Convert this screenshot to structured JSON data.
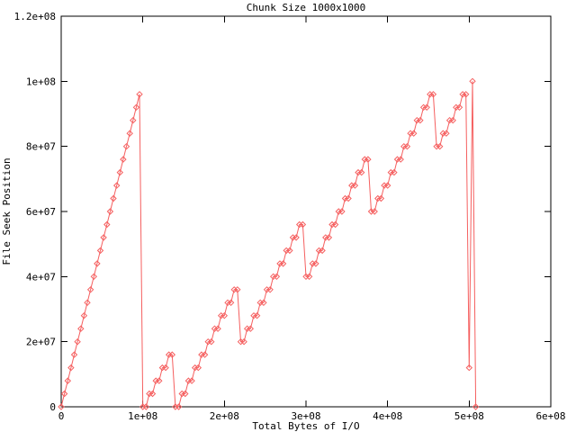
{
  "chart_data": {
    "type": "line",
    "title": "Chunk Size 1000x1000",
    "xlabel": "Total Bytes of I/O",
    "ylabel": "File Seek Position",
    "xlim": [
      0,
      600000000.0
    ],
    "ylim": [
      0,
      120000000.0
    ],
    "grid": false,
    "legend": "none",
    "axis_color": "#000000",
    "background_color": "#ffffff",
    "x_ticks": [
      {
        "value": 0,
        "label": "0"
      },
      {
        "value": 100000000.0,
        "label": "1e+08"
      },
      {
        "value": 200000000.0,
        "label": "2e+08"
      },
      {
        "value": 300000000.0,
        "label": "3e+08"
      },
      {
        "value": 400000000.0,
        "label": "4e+08"
      },
      {
        "value": 500000000.0,
        "label": "5e+08"
      },
      {
        "value": 600000000.0,
        "label": "6e+08"
      }
    ],
    "y_ticks": [
      {
        "value": 0,
        "label": "0"
      },
      {
        "value": 20000000.0,
        "label": "2e+07"
      },
      {
        "value": 40000000.0,
        "label": "4e+07"
      },
      {
        "value": 60000000.0,
        "label": "6e+07"
      },
      {
        "value": 80000000.0,
        "label": "8e+07"
      },
      {
        "value": 100000000.0,
        "label": "1e+08"
      },
      {
        "value": 120000000.0,
        "label": "1.2e+08"
      }
    ],
    "series": [
      {
        "name": "file-seek-position",
        "color": "#f55f5f",
        "marker": "open-diamond",
        "style": "linespoints",
        "points": [
          [
            0,
            0
          ],
          [
            4000000.0,
            4000000.0
          ],
          [
            8000000.0,
            8000000.0
          ],
          [
            12000000.0,
            12000000.0
          ],
          [
            16000000.0,
            16000000.0
          ],
          [
            20000000.0,
            20000000.0
          ],
          [
            24000000.0,
            24000000.0
          ],
          [
            28000000.0,
            28000000.0
          ],
          [
            32000000.0,
            32000000.0
          ],
          [
            36000000.0,
            36000000.0
          ],
          [
            40000000.0,
            40000000.0
          ],
          [
            44000000.0,
            44000000.0
          ],
          [
            48000000.0,
            48000000.0
          ],
          [
            52000000.0,
            52000000.0
          ],
          [
            56000000.0,
            56000000.0
          ],
          [
            60000000.0,
            60000000.0
          ],
          [
            64000000.0,
            64000000.0
          ],
          [
            68000000.0,
            68000000.0
          ],
          [
            72000000.0,
            72000000.0
          ],
          [
            76000000.0,
            76000000.0
          ],
          [
            80000000.0,
            80000000.0
          ],
          [
            84000000.0,
            84000000.0
          ],
          [
            88000000.0,
            88000000.0
          ],
          [
            92000000.0,
            92000000.0
          ],
          [
            96000000.0,
            96000000.0
          ],
          [
            100000000.0,
            0
          ],
          [
            104000000.0,
            0
          ],
          [
            108000000.0,
            4000000.0
          ],
          [
            112000000.0,
            4000000.0
          ],
          [
            116000000.0,
            8000000.0
          ],
          [
            120000000.0,
            8000000.0
          ],
          [
            124000000.0,
            12000000.0
          ],
          [
            128000000.0,
            12000000.0
          ],
          [
            132000000.0,
            16000000.0
          ],
          [
            136000000.0,
            16000000.0
          ],
          [
            140000000.0,
            0
          ],
          [
            144000000.0,
            0
          ],
          [
            148000000.0,
            4000000.0
          ],
          [
            152000000.0,
            4000000.0
          ],
          [
            156000000.0,
            8000000.0
          ],
          [
            160000000.0,
            8000000.0
          ],
          [
            164000000.0,
            12000000.0
          ],
          [
            168000000.0,
            12000000.0
          ],
          [
            172000000.0,
            16000000.0
          ],
          [
            176000000.0,
            16000000.0
          ],
          [
            180000000.0,
            20000000.0
          ],
          [
            184000000.0,
            20000000.0
          ],
          [
            188000000.0,
            24000000.0
          ],
          [
            192000000.0,
            24000000.0
          ],
          [
            196000000.0,
            28000000.0
          ],
          [
            200000000.0,
            28000000.0
          ],
          [
            204000000.0,
            32000000.0
          ],
          [
            208000000.0,
            32000000.0
          ],
          [
            212000000.0,
            36000000.0
          ],
          [
            216000000.0,
            36000000.0
          ],
          [
            220000000.0,
            20000000.0
          ],
          [
            224000000.0,
            20000000.0
          ],
          [
            228000000.0,
            24000000.0
          ],
          [
            232000000.0,
            24000000.0
          ],
          [
            236000000.0,
            28000000.0
          ],
          [
            240000000.0,
            28000000.0
          ],
          [
            244000000.0,
            32000000.0
          ],
          [
            248000000.0,
            32000000.0
          ],
          [
            252000000.0,
            36000000.0
          ],
          [
            256000000.0,
            36000000.0
          ],
          [
            260000000.0,
            40000000.0
          ],
          [
            264000000.0,
            40000000.0
          ],
          [
            268000000.0,
            44000000.0
          ],
          [
            272000000.0,
            44000000.0
          ],
          [
            276000000.0,
            48000000.0
          ],
          [
            280000000.0,
            48000000.0
          ],
          [
            284000000.0,
            52000000.0
          ],
          [
            288000000.0,
            52000000.0
          ],
          [
            292000000.0,
            56000000.0
          ],
          [
            296000000.0,
            56000000.0
          ],
          [
            300000000.0,
            40000000.0
          ],
          [
            304000000.0,
            40000000.0
          ],
          [
            308000000.0,
            44000000.0
          ],
          [
            312000000.0,
            44000000.0
          ],
          [
            316000000.0,
            48000000.0
          ],
          [
            320000000.0,
            48000000.0
          ],
          [
            324000000.0,
            52000000.0
          ],
          [
            328000000.0,
            52000000.0
          ],
          [
            332000000.0,
            56000000.0
          ],
          [
            336000000.0,
            56000000.0
          ],
          [
            340000000.0,
            60000000.0
          ],
          [
            344000000.0,
            60000000.0
          ],
          [
            348000000.0,
            64000000.0
          ],
          [
            352000000.0,
            64000000.0
          ],
          [
            356000000.0,
            68000000.0
          ],
          [
            360000000.0,
            68000000.0
          ],
          [
            364000000.0,
            72000000.0
          ],
          [
            368000000.0,
            72000000.0
          ],
          [
            372000000.0,
            76000000.0
          ],
          [
            376000000.0,
            76000000.0
          ],
          [
            380000000.0,
            60000000.0
          ],
          [
            384000000.0,
            60000000.0
          ],
          [
            388000000.0,
            64000000.0
          ],
          [
            392000000.0,
            64000000.0
          ],
          [
            396000000.0,
            68000000.0
          ],
          [
            400000000.0,
            68000000.0
          ],
          [
            404000000.0,
            72000000.0
          ],
          [
            408000000.0,
            72000000.0
          ],
          [
            412000000.0,
            76000000.0
          ],
          [
            416000000.0,
            76000000.0
          ],
          [
            420000000.0,
            80000000.0
          ],
          [
            424000000.0,
            80000000.0
          ],
          [
            428000000.0,
            84000000.0
          ],
          [
            432000000.0,
            84000000.0
          ],
          [
            436000000.0,
            88000000.0
          ],
          [
            440000000.0,
            88000000.0
          ],
          [
            444000000.0,
            92000000.0
          ],
          [
            448000000.0,
            92000000.0
          ],
          [
            452000000.0,
            96000000.0
          ],
          [
            456000000.0,
            96000000.0
          ],
          [
            460000000.0,
            80000000.0
          ],
          [
            464000000.0,
            80000000.0
          ],
          [
            468000000.0,
            84000000.0
          ],
          [
            472000000.0,
            84000000.0
          ],
          [
            476000000.0,
            88000000.0
          ],
          [
            480000000.0,
            88000000.0
          ],
          [
            484000000.0,
            92000000.0
          ],
          [
            488000000.0,
            92000000.0
          ],
          [
            492000000.0,
            96000000.0
          ],
          [
            496000000.0,
            96000000.0
          ],
          [
            500000000.0,
            12000000.0
          ],
          [
            504000000.0,
            100000000.0
          ],
          [
            508000000.0,
            0
          ]
        ]
      }
    ]
  }
}
